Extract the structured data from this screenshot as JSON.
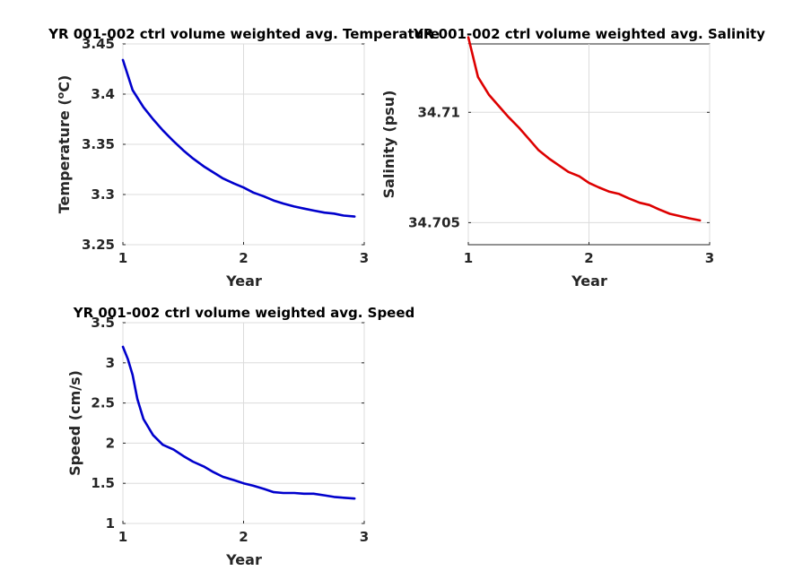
{
  "chart_data": [
    {
      "type": "line",
      "title": "YR 001-002 ctrl volume weighted avg. Temperature",
      "xlabel": "Year",
      "ylabel": "Temperature (°C)",
      "ylabel_main": "Temperature (",
      "ylabel_sup": "o",
      "ylabel_end": "C)",
      "xlim": [
        1,
        3
      ],
      "ylim": [
        3.25,
        3.45
      ],
      "xticks": [
        1,
        2,
        3
      ],
      "xtick_labels": [
        "1",
        "2",
        "3"
      ],
      "yticks": [
        3.25,
        3.3,
        3.35,
        3.4,
        3.45
      ],
      "ytick_labels": [
        "3.25",
        "3.3",
        "3.35",
        "3.4",
        "3.45"
      ],
      "grid": true,
      "color": "#0000cc",
      "x": [
        1.0,
        1.08,
        1.17,
        1.25,
        1.33,
        1.42,
        1.5,
        1.58,
        1.67,
        1.75,
        1.83,
        1.92,
        2.0,
        2.08,
        2.17,
        2.25,
        2.33,
        2.42,
        2.5,
        2.58,
        2.67,
        2.75,
        2.83,
        2.92
      ],
      "y": [
        3.434,
        3.404,
        3.387,
        3.375,
        3.364,
        3.353,
        3.344,
        3.336,
        3.328,
        3.322,
        3.316,
        3.311,
        3.307,
        3.302,
        3.298,
        3.294,
        3.291,
        3.288,
        3.286,
        3.284,
        3.282,
        3.281,
        3.279,
        3.278
      ]
    },
    {
      "type": "line",
      "title": "YR 001-002 ctrl volume weighted avg. Salinity",
      "xlabel": "Year",
      "ylabel": "Salinity (psu)",
      "xlim": [
        1,
        3
      ],
      "ylim": [
        34.704,
        34.7131
      ],
      "xticks": [
        1,
        2,
        3
      ],
      "xtick_labels": [
        "1",
        "2",
        "3"
      ],
      "yticks": [
        34.705,
        34.71
      ],
      "ytick_labels": [
        "34.705",
        "34.71"
      ],
      "grid": true,
      "color": "#dd0000",
      "x": [
        1.0,
        1.08,
        1.17,
        1.25,
        1.33,
        1.42,
        1.5,
        1.58,
        1.67,
        1.75,
        1.83,
        1.92,
        2.0,
        2.08,
        2.17,
        2.25,
        2.33,
        2.42,
        2.5,
        2.58,
        2.67,
        2.75,
        2.83,
        2.92
      ],
      "y": [
        34.7134,
        34.7116,
        34.7108,
        34.7103,
        34.7098,
        34.7093,
        34.7088,
        34.7083,
        34.7079,
        34.7076,
        34.7073,
        34.7071,
        34.7068,
        34.7066,
        34.7064,
        34.7063,
        34.7061,
        34.7059,
        34.7058,
        34.7056,
        34.7054,
        34.7053,
        34.7052,
        34.7051
      ]
    },
    {
      "type": "line",
      "title": "YR 001-002 ctrl volume weighted avg. Speed",
      "xlabel": "Year",
      "ylabel": "Speed (cm/s)",
      "xlim": [
        1,
        3
      ],
      "ylim": [
        1,
        3.5
      ],
      "xticks": [
        1,
        2,
        3
      ],
      "xtick_labels": [
        "1",
        "2",
        "3"
      ],
      "yticks": [
        1,
        1.5,
        2,
        2.5,
        3,
        3.5
      ],
      "ytick_labels": [
        "1",
        "1.5",
        "2",
        "2.5",
        "3",
        "3.5"
      ],
      "grid": true,
      "color": "#0000cc",
      "x": [
        1.0,
        1.04,
        1.08,
        1.12,
        1.17,
        1.25,
        1.33,
        1.42,
        1.5,
        1.58,
        1.67,
        1.75,
        1.83,
        1.92,
        2.0,
        2.08,
        2.17,
        2.25,
        2.33,
        2.42,
        2.5,
        2.58,
        2.67,
        2.75,
        2.83,
        2.92
      ],
      "y": [
        3.2,
        3.05,
        2.85,
        2.55,
        2.3,
        2.1,
        1.98,
        1.92,
        1.84,
        1.77,
        1.71,
        1.64,
        1.58,
        1.54,
        1.5,
        1.47,
        1.43,
        1.39,
        1.38,
        1.38,
        1.37,
        1.37,
        1.35,
        1.33,
        1.32,
        1.31
      ]
    }
  ]
}
